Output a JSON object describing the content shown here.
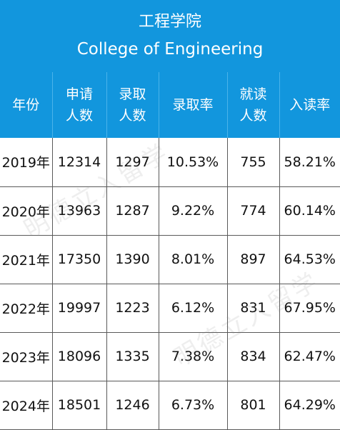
{
  "title": {
    "cn": "工程学院",
    "en": "College of Engineering"
  },
  "columns": [
    {
      "lines": [
        "年份"
      ]
    },
    {
      "lines": [
        "申请",
        "人数"
      ]
    },
    {
      "lines": [
        "录取",
        "人数"
      ]
    },
    {
      "lines": [
        "录取率"
      ]
    },
    {
      "lines": [
        "就读",
        "人数"
      ]
    },
    {
      "lines": [
        "入读率"
      ]
    }
  ],
  "rows": [
    [
      "2019年",
      "12314",
      "1297",
      "10.53%",
      "755",
      "58.21%"
    ],
    [
      "2020年",
      "13963",
      "1287",
      "9.22%",
      "774",
      "60.14%"
    ],
    [
      "2021年",
      "17350",
      "1390",
      "8.01%",
      "897",
      "64.53%"
    ],
    [
      "2022年",
      "19997",
      "1223",
      "6.12%",
      "831",
      "67.95%"
    ],
    [
      "2023年",
      "18096",
      "1335",
      "7.38%",
      "834",
      "62.47%"
    ],
    [
      "2024年",
      "18501",
      "1246",
      "6.73%",
      "801",
      "64.29%"
    ]
  ],
  "colors": {
    "header_bg": "#1296dd",
    "header_text": "#ffffff",
    "grid_line": "#5a5a5a"
  }
}
